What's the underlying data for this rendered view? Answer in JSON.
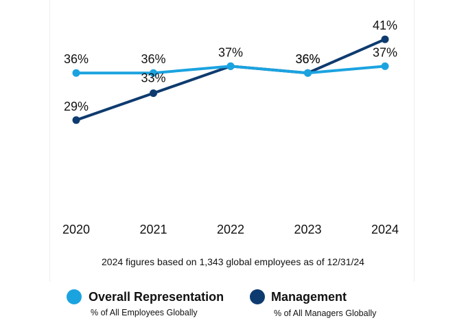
{
  "chart_data": {
    "type": "line",
    "categories": [
      "2020",
      "2021",
      "2022",
      "2023",
      "2024"
    ],
    "ylim": [
      20,
      45
    ],
    "series": [
      {
        "key": "overall",
        "name": "Overall Representation",
        "subtitle": "% of All Employees Globally",
        "color": "#1ba3e0",
        "values": [
          36,
          36,
          37,
          36,
          37
        ],
        "labels": [
          "36%",
          "36%",
          "37%",
          "36%",
          "37%"
        ]
      },
      {
        "key": "management",
        "name": "Management",
        "subtitle": "% of All Managers Globally",
        "color": "#0e3b6f",
        "values": [
          29,
          33,
          37,
          36,
          41
        ],
        "labels": [
          "29%",
          "33%",
          "37%",
          "36%",
          "41%"
        ]
      }
    ],
    "grid": false
  },
  "note": "2024 figures based on 1,343 global employees as of 12/31/24",
  "legend": [
    {
      "title": "Overall Representation",
      "subtitle": "% of All Employees Globally",
      "color": "#1ba3e0"
    },
    {
      "title": "Management",
      "subtitle": "% of All Managers Globally",
      "color": "#0e3b6f"
    }
  ]
}
